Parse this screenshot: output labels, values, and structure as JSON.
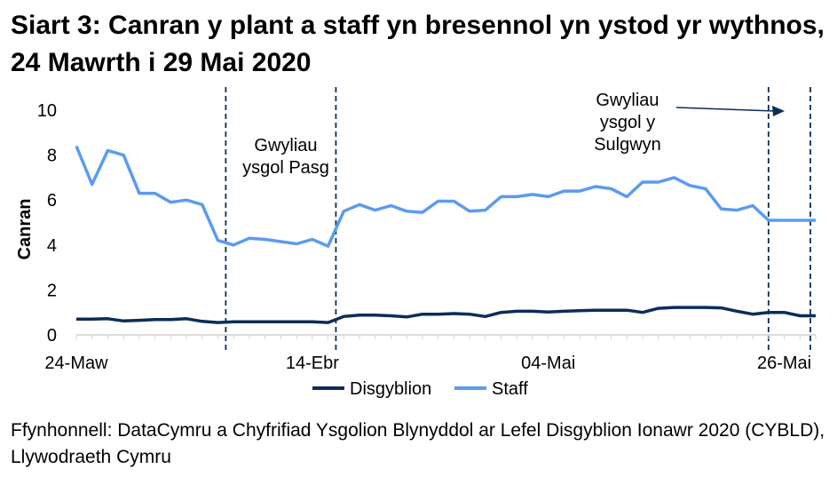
{
  "title": "Siart 3: Canran y plant a staff yn bresennol yn ystod yr wythnos, 24 Mawrth i 29 Mai 2020",
  "source": "Ffynhonnell: DataCymru a Chyfrifiad Ysgolion Blynyddol ar Lefel Disgyblion Ionawr 2020 (CYBLD), Llywodraeth Cymru",
  "chart_data": {
    "type": "line",
    "ylabel": "Canran",
    "xlabel": "",
    "ylim": [
      0,
      10
    ],
    "yticks": [
      0,
      2,
      4,
      6,
      8,
      10
    ],
    "x_tick_labels": [
      {
        "label": "24-Maw",
        "index": 0
      },
      {
        "label": "14-Ebr",
        "index": 15
      },
      {
        "label": "04-Mai",
        "index": 30
      },
      {
        "label": "26-Mai",
        "index": 45
      }
    ],
    "n_points": 48,
    "series": [
      {
        "name": "Disgyblion",
        "color": "#0b2d5b",
        "values": [
          0.7,
          0.7,
          0.72,
          0.62,
          0.65,
          0.68,
          0.68,
          0.72,
          0.6,
          0.55,
          0.58,
          0.58,
          0.58,
          0.58,
          0.58,
          0.58,
          0.55,
          0.82,
          0.88,
          0.88,
          0.85,
          0.8,
          0.92,
          0.92,
          0.95,
          0.92,
          0.82,
          1.0,
          1.05,
          1.05,
          1.02,
          1.05,
          1.08,
          1.1,
          1.1,
          1.1,
          1.0,
          1.18,
          1.22,
          1.22,
          1.22,
          1.2,
          1.05,
          0.92,
          1.0,
          1.0,
          0.85,
          0.85
        ]
      },
      {
        "name": "Staff",
        "color": "#5b9bef",
        "values": [
          8.4,
          6.7,
          8.2,
          8.0,
          6.3,
          6.3,
          5.9,
          6.0,
          5.8,
          4.2,
          4.0,
          4.3,
          4.25,
          4.15,
          4.05,
          4.25,
          3.95,
          5.5,
          5.8,
          5.55,
          5.75,
          5.5,
          5.45,
          5.95,
          5.95,
          5.5,
          5.55,
          6.15,
          6.15,
          6.25,
          6.15,
          6.4,
          6.4,
          6.6,
          6.5,
          6.15,
          6.8,
          6.8,
          7.0,
          6.65,
          6.5,
          5.6,
          5.55,
          5.75,
          5.1,
          5.1,
          5.1,
          5.1
        ]
      }
    ],
    "annotations": [
      {
        "text": "Gwyliau ysgol Pasg",
        "lines": [
          "Gwyliau",
          "ysgol Pasg"
        ],
        "after_index": 9.5
      },
      {
        "text": "Gwyliau ysgol y Sulgwyn",
        "lines": [
          "Gwyliau",
          "ysgol y",
          "Sulgwyn"
        ],
        "after_index": 44
      }
    ],
    "vertical_markers_after_index": [
      9.5,
      16.5,
      44,
      48
    ],
    "legend": {
      "position": "bottom",
      "items": [
        "Disgyblion",
        "Staff"
      ]
    },
    "grid": false
  }
}
